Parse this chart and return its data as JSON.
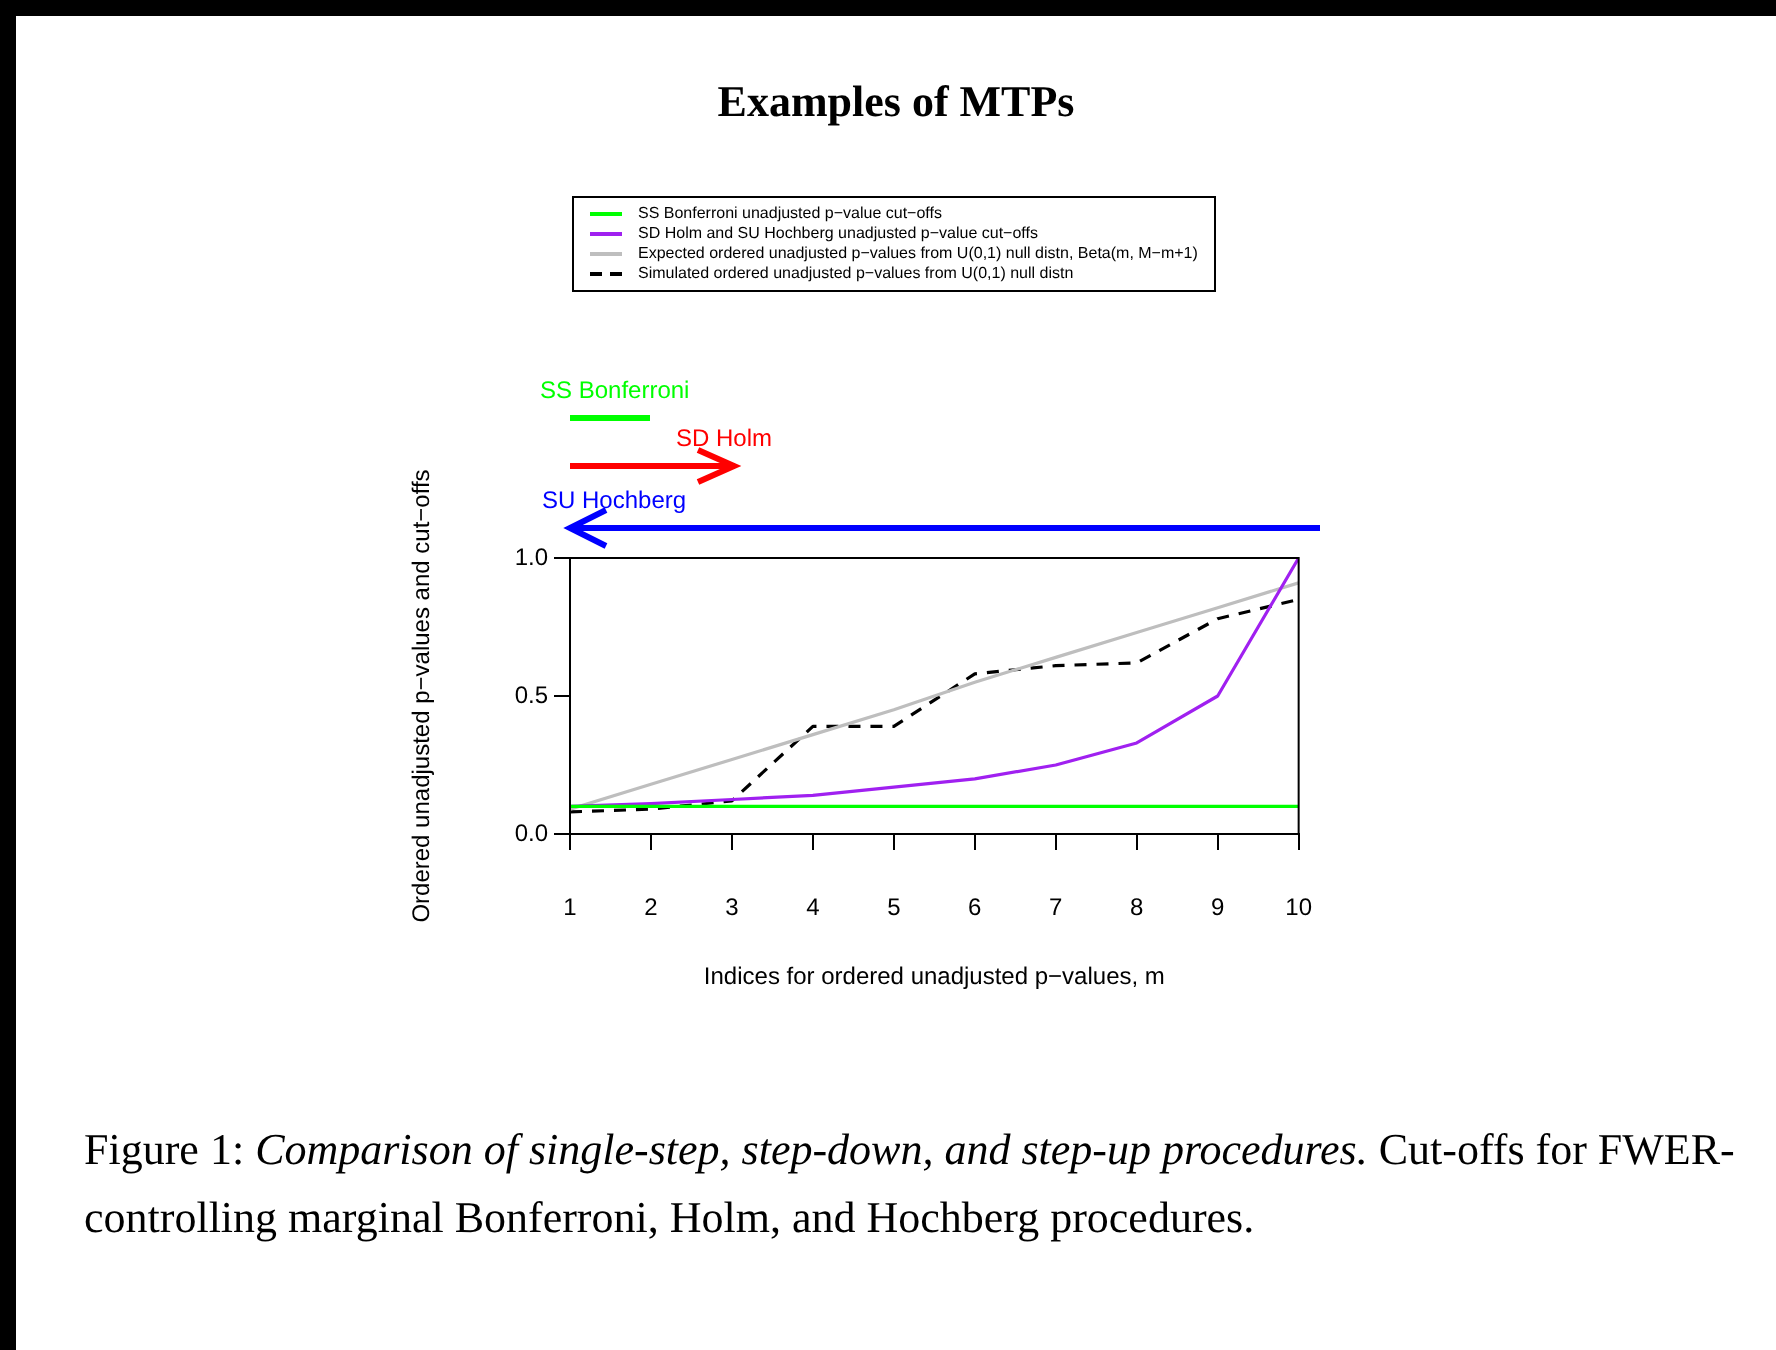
{
  "chart_data": {
    "type": "line",
    "title": "Examples of MTPs",
    "xlabel": "Indices for ordered unadjusted p−values, m",
    "ylabel": "Ordered unadjusted p−values and cut−offs",
    "x": [
      1,
      2,
      3,
      4,
      5,
      6,
      7,
      8,
      9,
      10
    ],
    "xlim": [
      1,
      10
    ],
    "xticks": [
      1,
      2,
      3,
      4,
      5,
      6,
      7,
      8,
      9,
      10
    ],
    "ylim": [
      0,
      1
    ],
    "yticks": [
      {
        "value": 0,
        "label": "0.0"
      },
      {
        "value": 0.5,
        "label": "0.5"
      },
      {
        "value": 1,
        "label": "1.0"
      }
    ],
    "grid": false,
    "legend": "top",
    "marker": "none",
    "series": [
      {
        "name": "SS Bonferroni unadjusted p−value cut−offs",
        "color": "#00ff00",
        "line_style": "solid",
        "values": [
          0.1,
          0.1,
          0.1,
          0.1,
          0.1,
          0.1,
          0.1,
          0.1,
          0.1,
          0.1
        ]
      },
      {
        "name": "SD Holm and SU Hochberg unadjusted p−value cut−offs",
        "color": "#a020f0",
        "line_style": "solid",
        "values": [
          0.1,
          0.11,
          0.125,
          0.14,
          0.17,
          0.2,
          0.25,
          0.33,
          0.5,
          1
        ]
      },
      {
        "name": "Expected ordered unadjusted p−values from U(0,1) null distn, Beta(m, M−m+1)",
        "color": "#bebebe",
        "line_style": "solid",
        "values": [
          0.09,
          0.18,
          0.27,
          0.36,
          0.45,
          0.55,
          0.64,
          0.73,
          0.82,
          0.91
        ]
      },
      {
        "name": "Simulated ordered unadjusted p−values from U(0,1) null distn",
        "color": "#000000",
        "line_style": "dashed",
        "values": [
          0.08,
          0.09,
          0.12,
          0.39,
          0.39,
          0.58,
          0.61,
          0.62,
          0.78,
          0.85
        ]
      }
    ],
    "annotations": [
      "SS Bonferroni",
      "SD Holm",
      "SU Hochberg",
      "Figure 1:",
      "Comparison of single-step, step-down, and step-up procedures.",
      "Cut-offs for FWER-controlling marginal Bonferroni, Holm, and Hochberg procedures."
    ]
  }
}
